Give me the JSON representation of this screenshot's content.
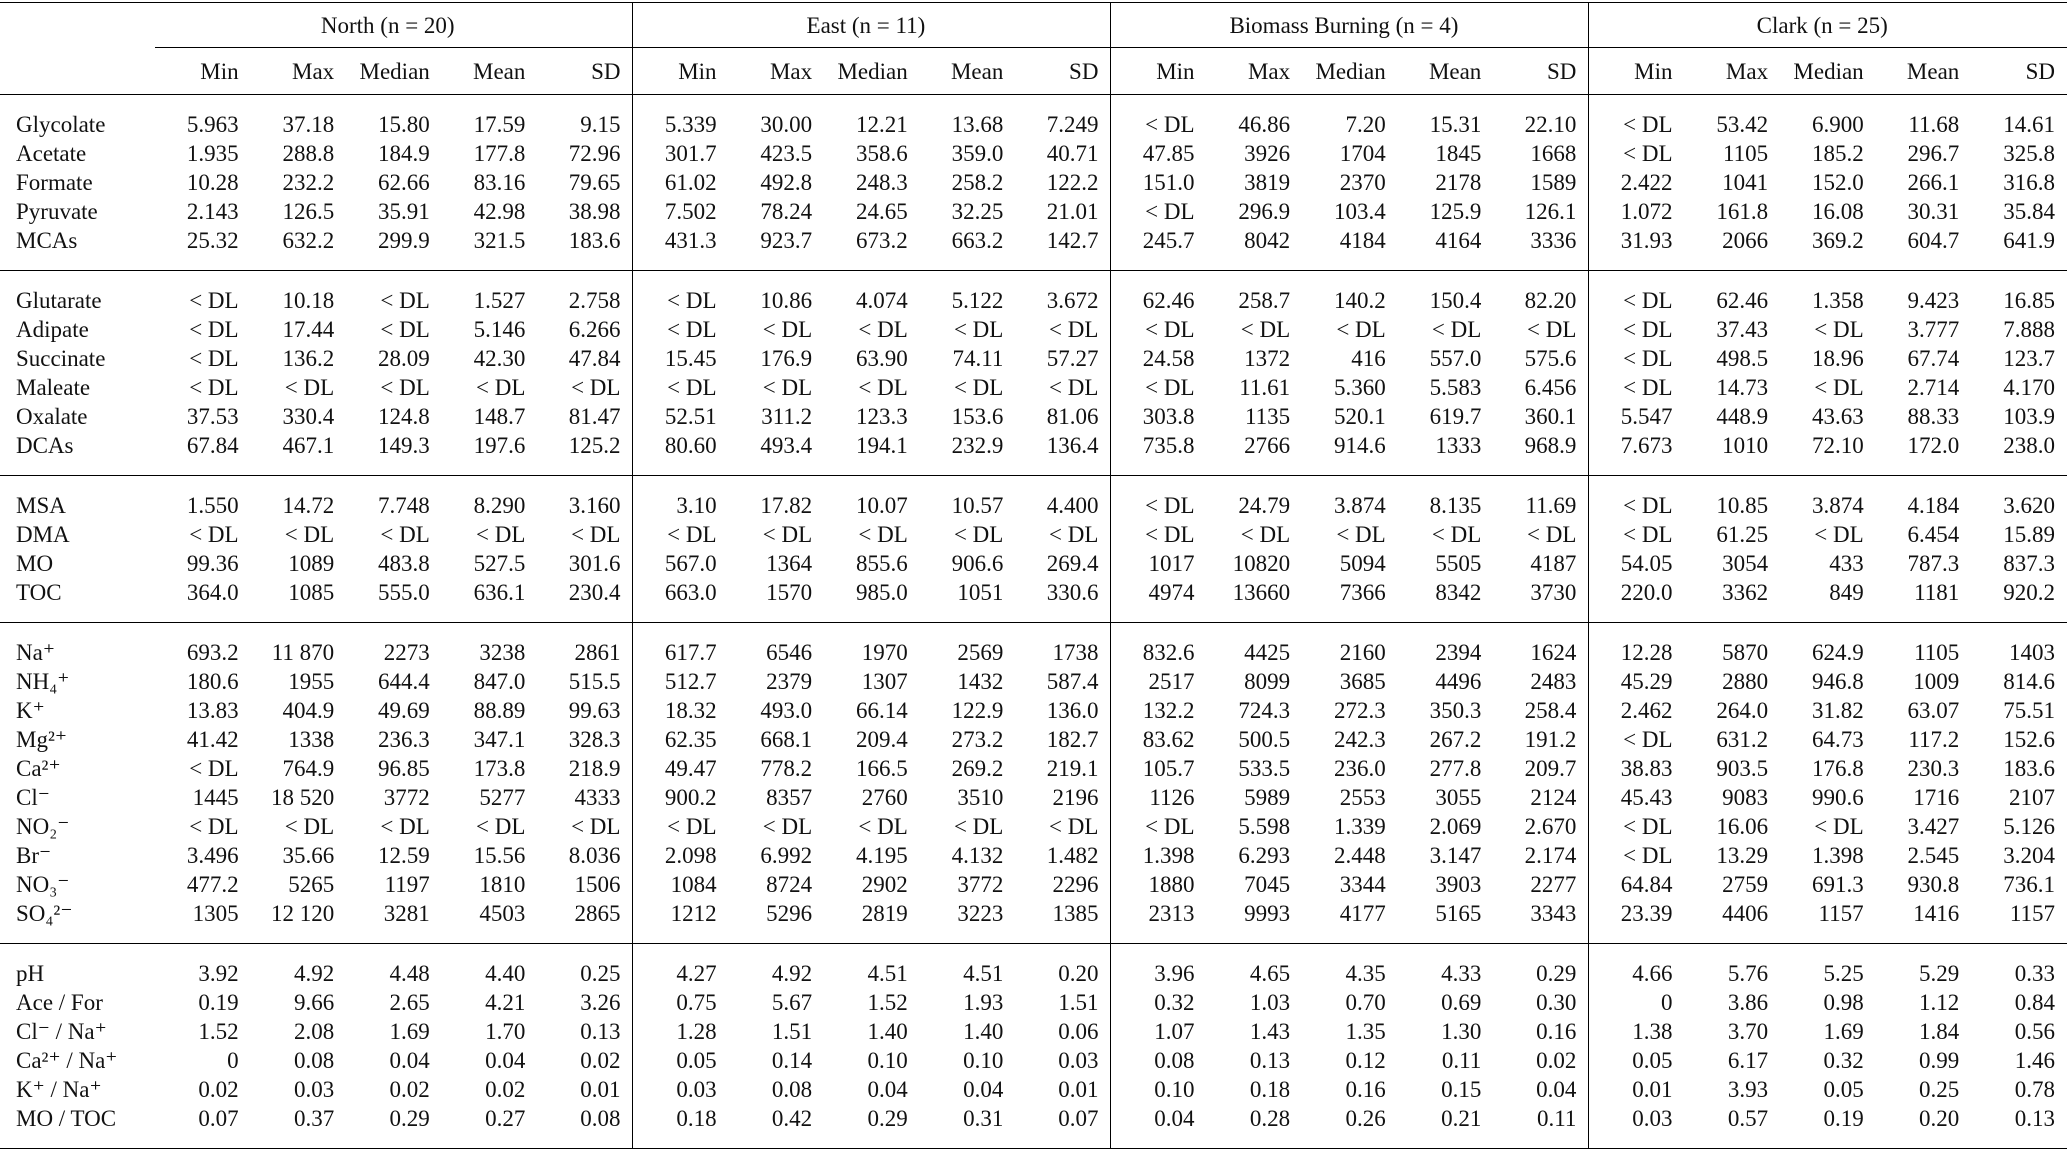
{
  "table": {
    "groups": [
      "North (n = 20)",
      "East (n = 11)",
      "Biomass Burning (n = 4)",
      "Clark (n = 25)"
    ],
    "stats": [
      "Min",
      "Max",
      "Median",
      "Mean",
      "SD"
    ],
    "sections": [
      {
        "rows": [
          {
            "label": "Glycolate",
            "values": [
              "5.963",
              "37.18",
              "15.80",
              "17.59",
              "9.15",
              "5.339",
              "30.00",
              "12.21",
              "13.68",
              "7.249",
              "< DL",
              "46.86",
              "7.20",
              "15.31",
              "22.10",
              "< DL",
              "53.42",
              "6.900",
              "11.68",
              "14.61"
            ]
          },
          {
            "label": "Acetate",
            "values": [
              "1.935",
              "288.8",
              "184.9",
              "177.8",
              "72.96",
              "301.7",
              "423.5",
              "358.6",
              "359.0",
              "40.71",
              "47.85",
              "3926",
              "1704",
              "1845",
              "1668",
              "< DL",
              "1105",
              "185.2",
              "296.7",
              "325.8"
            ]
          },
          {
            "label": "Formate",
            "values": [
              "10.28",
              "232.2",
              "62.66",
              "83.16",
              "79.65",
              "61.02",
              "492.8",
              "248.3",
              "258.2",
              "122.2",
              "151.0",
              "3819",
              "2370",
              "2178",
              "1589",
              "2.422",
              "1041",
              "152.0",
              "266.1",
              "316.8"
            ]
          },
          {
            "label": "Pyruvate",
            "values": [
              "2.143",
              "126.5",
              "35.91",
              "42.98",
              "38.98",
              "7.502",
              "78.24",
              "24.65",
              "32.25",
              "21.01",
              "< DL",
              "296.9",
              "103.4",
              "125.9",
              "126.1",
              "1.072",
              "161.8",
              "16.08",
              "30.31",
              "35.84"
            ]
          },
          {
            "label": "MCAs",
            "values": [
              "25.32",
              "632.2",
              "299.9",
              "321.5",
              "183.6",
              "431.3",
              "923.7",
              "673.2",
              "663.2",
              "142.7",
              "245.7",
              "8042",
              "4184",
              "4164",
              "3336",
              "31.93",
              "2066",
              "369.2",
              "604.7",
              "641.9"
            ]
          }
        ]
      },
      {
        "rows": [
          {
            "label": "Glutarate",
            "values": [
              "< DL",
              "10.18",
              "< DL",
              "1.527",
              "2.758",
              "< DL",
              "10.86",
              "4.074",
              "5.122",
              "3.672",
              "62.46",
              "258.7",
              "140.2",
              "150.4",
              "82.20",
              "< DL",
              "62.46",
              "1.358",
              "9.423",
              "16.85"
            ]
          },
          {
            "label": "Adipate",
            "values": [
              "< DL",
              "17.44",
              "< DL",
              "5.146",
              "6.266",
              "< DL",
              "< DL",
              "< DL",
              "< DL",
              "< DL",
              "< DL",
              "< DL",
              "< DL",
              "< DL",
              "< DL",
              "< DL",
              "37.43",
              "< DL",
              "3.777",
              "7.888"
            ]
          },
          {
            "label": "Succinate",
            "values": [
              "< DL",
              "136.2",
              "28.09",
              "42.30",
              "47.84",
              "15.45",
              "176.9",
              "63.90",
              "74.11",
              "57.27",
              "24.58",
              "1372",
              "416",
              "557.0",
              "575.6",
              "< DL",
              "498.5",
              "18.96",
              "67.74",
              "123.7"
            ]
          },
          {
            "label": "Maleate",
            "values": [
              "< DL",
              "< DL",
              "< DL",
              "< DL",
              "< DL",
              "< DL",
              "< DL",
              "< DL",
              "< DL",
              "< DL",
              "< DL",
              "11.61",
              "5.360",
              "5.583",
              "6.456",
              "< DL",
              "14.73",
              "< DL",
              "2.714",
              "4.170"
            ]
          },
          {
            "label": "Oxalate",
            "values": [
              "37.53",
              "330.4",
              "124.8",
              "148.7",
              "81.47",
              "52.51",
              "311.2",
              "123.3",
              "153.6",
              "81.06",
              "303.8",
              "1135",
              "520.1",
              "619.7",
              "360.1",
              "5.547",
              "448.9",
              "43.63",
              "88.33",
              "103.9"
            ]
          },
          {
            "label": "DCAs",
            "values": [
              "67.84",
              "467.1",
              "149.3",
              "197.6",
              "125.2",
              "80.60",
              "493.4",
              "194.1",
              "232.9",
              "136.4",
              "735.8",
              "2766",
              "914.6",
              "1333",
              "968.9",
              "7.673",
              "1010",
              "72.10",
              "172.0",
              "238.0"
            ]
          }
        ]
      },
      {
        "rows": [
          {
            "label": "MSA",
            "values": [
              "1.550",
              "14.72",
              "7.748",
              "8.290",
              "3.160",
              "3.10",
              "17.82",
              "10.07",
              "10.57",
              "4.400",
              "< DL",
              "24.79",
              "3.874",
              "8.135",
              "11.69",
              "< DL",
              "10.85",
              "3.874",
              "4.184",
              "3.620"
            ]
          },
          {
            "label": "DMA",
            "values": [
              "< DL",
              "< DL",
              "< DL",
              "< DL",
              "< DL",
              "< DL",
              "< DL",
              "< DL",
              "< DL",
              "< DL",
              "< DL",
              "< DL",
              "< DL",
              "< DL",
              "< DL",
              "< DL",
              "61.25",
              "< DL",
              "6.454",
              "15.89"
            ]
          },
          {
            "label": "MO",
            "values": [
              "99.36",
              "1089",
              "483.8",
              "527.5",
              "301.6",
              "567.0",
              "1364",
              "855.6",
              "906.6",
              "269.4",
              "1017",
              "10820",
              "5094",
              "5505",
              "4187",
              "54.05",
              "3054",
              "433",
              "787.3",
              "837.3"
            ]
          },
          {
            "label": "TOC",
            "values": [
              "364.0",
              "1085",
              "555.0",
              "636.1",
              "230.4",
              "663.0",
              "1570",
              "985.0",
              "1051",
              "330.6",
              "4974",
              "13660",
              "7366",
              "8342",
              "3730",
              "220.0",
              "3362",
              "849",
              "1181",
              "920.2"
            ]
          }
        ]
      },
      {
        "rows": [
          {
            "label": "Na⁺",
            "values": [
              "693.2",
              "11 870",
              "2273",
              "3238",
              "2861",
              "617.7",
              "6546",
              "1970",
              "2569",
              "1738",
              "832.6",
              "4425",
              "2160",
              "2394",
              "1624",
              "12.28",
              "5870",
              "624.9",
              "1105",
              "1403"
            ]
          },
          {
            "label": "NH₄⁺",
            "values": [
              "180.6",
              "1955",
              "644.4",
              "847.0",
              "515.5",
              "512.7",
              "2379",
              "1307",
              "1432",
              "587.4",
              "2517",
              "8099",
              "3685",
              "4496",
              "2483",
              "45.29",
              "2880",
              "946.8",
              "1009",
              "814.6"
            ]
          },
          {
            "label": "K⁺",
            "values": [
              "13.83",
              "404.9",
              "49.69",
              "88.89",
              "99.63",
              "18.32",
              "493.0",
              "66.14",
              "122.9",
              "136.0",
              "132.2",
              "724.3",
              "272.3",
              "350.3",
              "258.4",
              "2.462",
              "264.0",
              "31.82",
              "63.07",
              "75.51"
            ]
          },
          {
            "label": "Mg²⁺",
            "values": [
              "41.42",
              "1338",
              "236.3",
              "347.1",
              "328.3",
              "62.35",
              "668.1",
              "209.4",
              "273.2",
              "182.7",
              "83.62",
              "500.5",
              "242.3",
              "267.2",
              "191.2",
              "< DL",
              "631.2",
              "64.73",
              "117.2",
              "152.6"
            ]
          },
          {
            "label": "Ca²⁺",
            "values": [
              "< DL",
              "764.9",
              "96.85",
              "173.8",
              "218.9",
              "49.47",
              "778.2",
              "166.5",
              "269.2",
              "219.1",
              "105.7",
              "533.5",
              "236.0",
              "277.8",
              "209.7",
              "38.83",
              "903.5",
              "176.8",
              "230.3",
              "183.6"
            ]
          },
          {
            "label": "Cl⁻",
            "values": [
              "1445",
              "18 520",
              "3772",
              "5277",
              "4333",
              "900.2",
              "8357",
              "2760",
              "3510",
              "2196",
              "1126",
              "5989",
              "2553",
              "3055",
              "2124",
              "45.43",
              "9083",
              "990.6",
              "1716",
              "2107"
            ]
          },
          {
            "label": "NO₂⁻",
            "values": [
              "< DL",
              "< DL",
              "< DL",
              "< DL",
              "< DL",
              "< DL",
              "< DL",
              "< DL",
              "< DL",
              "< DL",
              "< DL",
              "5.598",
              "1.339",
              "2.069",
              "2.670",
              "< DL",
              "16.06",
              "< DL",
              "3.427",
              "5.126"
            ]
          },
          {
            "label": "Br⁻",
            "values": [
              "3.496",
              "35.66",
              "12.59",
              "15.56",
              "8.036",
              "2.098",
              "6.992",
              "4.195",
              "4.132",
              "1.482",
              "1.398",
              "6.293",
              "2.448",
              "3.147",
              "2.174",
              "< DL",
              "13.29",
              "1.398",
              "2.545",
              "3.204"
            ]
          },
          {
            "label": "NO₃⁻",
            "values": [
              "477.2",
              "5265",
              "1197",
              "1810",
              "1506",
              "1084",
              "8724",
              "2902",
              "3772",
              "2296",
              "1880",
              "7045",
              "3344",
              "3903",
              "2277",
              "64.84",
              "2759",
              "691.3",
              "930.8",
              "736.1"
            ]
          },
          {
            "label": "SO₄²⁻",
            "values": [
              "1305",
              "12 120",
              "3281",
              "4503",
              "2865",
              "1212",
              "5296",
              "2819",
              "3223",
              "1385",
              "2313",
              "9993",
              "4177",
              "5165",
              "3343",
              "23.39",
              "4406",
              "1157",
              "1416",
              "1157"
            ]
          }
        ]
      },
      {
        "rows": [
          {
            "label": "pH",
            "values": [
              "3.92",
              "4.92",
              "4.48",
              "4.40",
              "0.25",
              "4.27",
              "4.92",
              "4.51",
              "4.51",
              "0.20",
              "3.96",
              "4.65",
              "4.35",
              "4.33",
              "0.29",
              "4.66",
              "5.76",
              "5.25",
              "5.29",
              "0.33"
            ]
          },
          {
            "label": "Ace / For",
            "values": [
              "0.19",
              "9.66",
              "2.65",
              "4.21",
              "3.26",
              "0.75",
              "5.67",
              "1.52",
              "1.93",
              "1.51",
              "0.32",
              "1.03",
              "0.70",
              "0.69",
              "0.30",
              "0",
              "3.86",
              "0.98",
              "1.12",
              "0.84"
            ]
          },
          {
            "label": "Cl⁻ / Na⁺",
            "values": [
              "1.52",
              "2.08",
              "1.69",
              "1.70",
              "0.13",
              "1.28",
              "1.51",
              "1.40",
              "1.40",
              "0.06",
              "1.07",
              "1.43",
              "1.35",
              "1.30",
              "0.16",
              "1.38",
              "3.70",
              "1.69",
              "1.84",
              "0.56"
            ]
          },
          {
            "label": "Ca²⁺ / Na⁺",
            "values": [
              "0",
              "0.08",
              "0.04",
              "0.04",
              "0.02",
              "0.05",
              "0.14",
              "0.10",
              "0.10",
              "0.03",
              "0.08",
              "0.13",
              "0.12",
              "0.11",
              "0.02",
              "0.05",
              "6.17",
              "0.32",
              "0.99",
              "1.46"
            ]
          },
          {
            "label": "K⁺ / Na⁺",
            "values": [
              "0.02",
              "0.03",
              "0.02",
              "0.02",
              "0.01",
              "0.03",
              "0.08",
              "0.04",
              "0.04",
              "0.01",
              "0.10",
              "0.18",
              "0.16",
              "0.15",
              "0.04",
              "0.01",
              "3.93",
              "0.05",
              "0.25",
              "0.78"
            ]
          },
          {
            "label": "MO / TOC",
            "values": [
              "0.07",
              "0.37",
              "0.29",
              "0.27",
              "0.08",
              "0.18",
              "0.42",
              "0.29",
              "0.31",
              "0.07",
              "0.04",
              "0.28",
              "0.26",
              "0.21",
              "0.11",
              "0.03",
              "0.57",
              "0.19",
              "0.20",
              "0.13"
            ]
          }
        ]
      }
    ]
  }
}
